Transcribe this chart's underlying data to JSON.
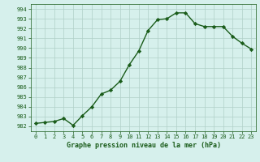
{
  "x": [
    0,
    1,
    2,
    3,
    4,
    5,
    6,
    7,
    8,
    9,
    10,
    11,
    12,
    13,
    14,
    15,
    16,
    17,
    18,
    19,
    20,
    21,
    22,
    23
  ],
  "y": [
    982.3,
    982.4,
    982.5,
    982.8,
    982.1,
    983.1,
    984.0,
    985.3,
    985.7,
    986.6,
    988.3,
    989.7,
    991.8,
    992.9,
    993.0,
    993.6,
    993.6,
    992.5,
    992.2,
    992.2,
    992.2,
    991.2,
    990.5,
    989.9
  ],
  "ylim": [
    981.5,
    994.5
  ],
  "xlim": [
    -0.5,
    23.5
  ],
  "yticks": [
    982,
    983,
    984,
    985,
    986,
    987,
    988,
    989,
    990,
    991,
    992,
    993,
    994
  ],
  "xticks": [
    0,
    1,
    2,
    3,
    4,
    5,
    6,
    7,
    8,
    9,
    10,
    11,
    12,
    13,
    14,
    15,
    16,
    17,
    18,
    19,
    20,
    21,
    22,
    23
  ],
  "xlabel": "Graphe pression niveau de la mer (hPa)",
  "line_color": "#1a5c1a",
  "marker": "D",
  "marker_size": 2.2,
  "bg_color": "#d6f0ec",
  "grid_color": "#b0cfc8",
  "tick_label_color": "#1a5c1a",
  "xlabel_color": "#1a5c1a",
  "line_width": 1.0
}
